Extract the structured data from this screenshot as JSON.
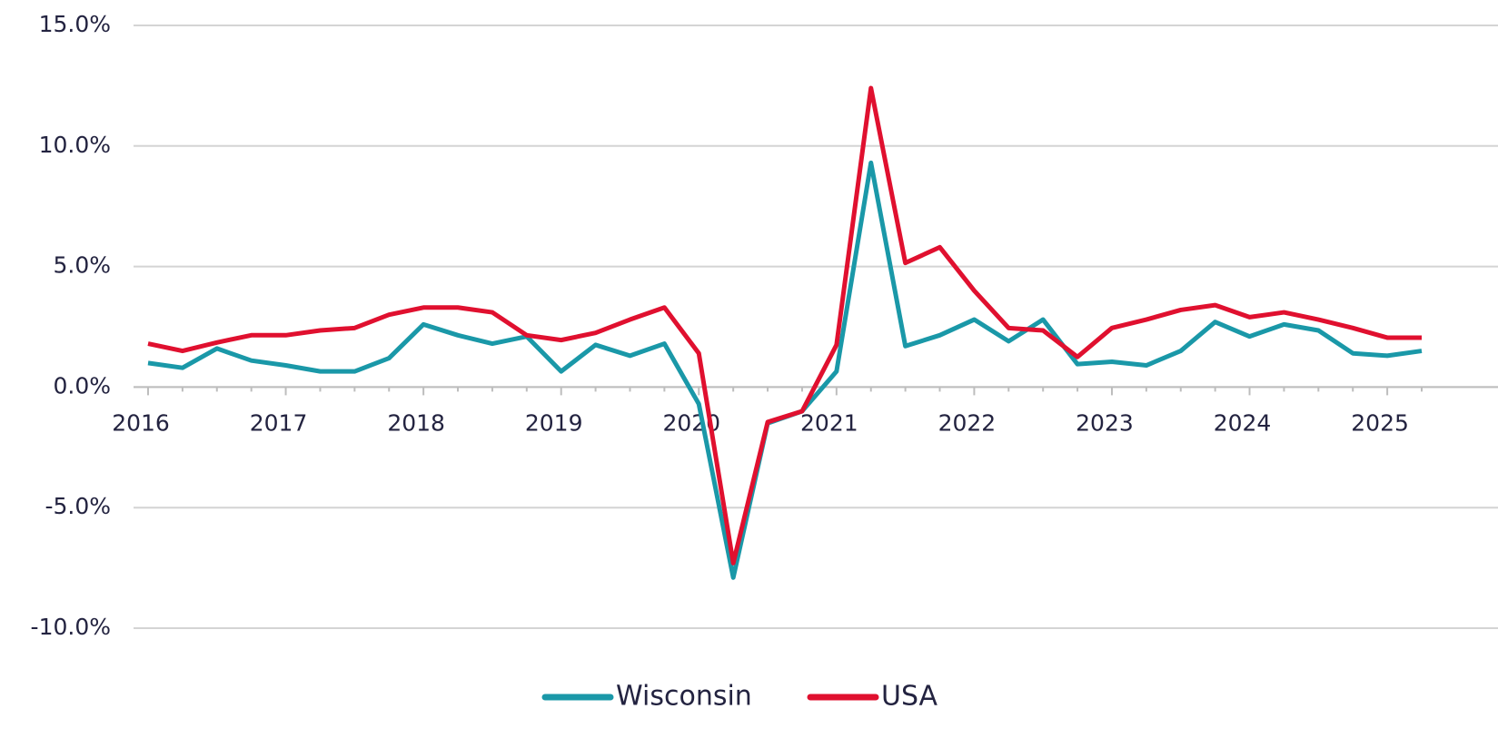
{
  "chart_data": {
    "type": "line",
    "categories": [
      "2016",
      null,
      null,
      null,
      "2017",
      null,
      null,
      null,
      "2018",
      null,
      null,
      null,
      "2019",
      null,
      null,
      null,
      "2020",
      null,
      null,
      null,
      "2021",
      null,
      null,
      null,
      "2022",
      null,
      null,
      null,
      "2023",
      null,
      null,
      null,
      "2024",
      null,
      null,
      null,
      "2025",
      null
    ],
    "series": [
      {
        "name": "Wisconsin",
        "color": "#1a98a8",
        "values": [
          1.0,
          0.8,
          1.6,
          1.1,
          0.9,
          0.65,
          0.65,
          1.2,
          2.6,
          2.15,
          1.8,
          2.1,
          0.65,
          1.75,
          1.3,
          1.8,
          -0.7,
          -7.9,
          -1.5,
          -1.0,
          0.65,
          9.3,
          1.7,
          2.15,
          2.8,
          1.9,
          2.8,
          0.95,
          1.05,
          0.9,
          1.5,
          2.7,
          2.1,
          2.6,
          2.35,
          1.4,
          1.3,
          1.5
        ]
      },
      {
        "name": "USA",
        "color": "#e0102f",
        "values": [
          1.8,
          1.5,
          1.85,
          2.15,
          2.15,
          2.35,
          2.45,
          3.0,
          3.3,
          3.3,
          3.1,
          2.15,
          1.95,
          2.25,
          2.8,
          3.3,
          1.4,
          -7.3,
          -1.45,
          -1.0,
          1.75,
          12.4,
          5.15,
          5.8,
          4.0,
          2.45,
          2.35,
          1.25,
          2.45,
          2.8,
          3.2,
          3.4,
          2.9,
          3.1,
          2.8,
          2.45,
          2.05,
          2.05
        ]
      }
    ],
    "ylim": [
      -11,
      15.5
    ],
    "yticks": [
      {
        "value": -10,
        "label": "-10.0%"
      },
      {
        "value": -5,
        "label": "-5.0%"
      },
      {
        "value": 0,
        "label": "0.0%"
      },
      {
        "value": 5,
        "label": "5.0%"
      },
      {
        "value": 10,
        "label": "10.0%"
      },
      {
        "value": 15,
        "label": "15.0%"
      }
    ],
    "grid": true,
    "legend": "bottom"
  }
}
